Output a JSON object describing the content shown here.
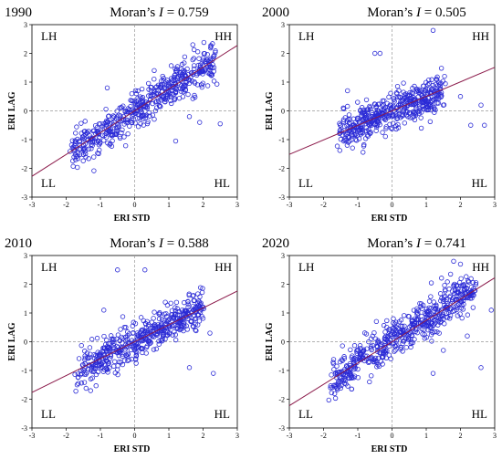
{
  "chart_data": [
    {
      "type": "scatter",
      "year": "1990",
      "moran_prefix": "Moran’s ",
      "moran_symbol": "I",
      "moran_value": " = 0.759",
      "slope": 0.759,
      "xlabel": "ERI    STD",
      "ylabel": "ERI  LAG",
      "xlim": [
        -3,
        3
      ],
      "ylim": [
        -3,
        3
      ],
      "ticks": [
        "-3",
        "-2",
        "-1",
        "0",
        "1",
        "2",
        "3"
      ],
      "quadrants": {
        "LH": "LH",
        "HH": "HH",
        "LL": "LL",
        "HL": "HL"
      },
      "cluster": {
        "x_range": [
          -1.8,
          2.4
        ],
        "spread": 0.35,
        "n": 520
      },
      "outliers": [
        [
          2.5,
          -0.45
        ],
        [
          1.9,
          -0.4
        ],
        [
          1.2,
          -1.05
        ],
        [
          1.6,
          -0.2
        ],
        [
          1.7,
          2.3
        ],
        [
          -0.8,
          0.8
        ]
      ]
    },
    {
      "type": "scatter",
      "year": "2000",
      "moran_prefix": "Moran’s ",
      "moran_symbol": "I",
      "moran_value": " = 0.505",
      "slope": 0.505,
      "xlabel": "ERI    STD",
      "ylabel": "ERI  LAG",
      "xlim": [
        -3,
        3
      ],
      "ylim": [
        -3,
        3
      ],
      "ticks": [
        "-3",
        "-2",
        "-1",
        "0",
        "1",
        "2",
        "3"
      ],
      "quadrants": {
        "LH": "LH",
        "HH": "HH",
        "LL": "LL",
        "HL": "HL"
      },
      "cluster": {
        "x_range": [
          -1.6,
          1.5
        ],
        "spread": 0.32,
        "n": 480
      },
      "outliers": [
        [
          1.2,
          2.8
        ],
        [
          -0.35,
          2.0
        ],
        [
          -0.5,
          2.0
        ],
        [
          -1.3,
          0.7
        ],
        [
          2.3,
          -0.5
        ],
        [
          2.7,
          -0.5
        ],
        [
          2.0,
          0.5
        ],
        [
          1.5,
          0.2
        ],
        [
          0.6,
          0.6
        ],
        [
          2.6,
          0.2
        ]
      ]
    },
    {
      "type": "scatter",
      "year": "2010",
      "moran_prefix": "Moran’s ",
      "moran_symbol": "I",
      "moran_value": " = 0.588",
      "slope": 0.588,
      "xlabel": "ERI    STD",
      "ylabel": "ERI  LAG",
      "xlim": [
        -3,
        3
      ],
      "ylim": [
        -3,
        3
      ],
      "ticks": [
        "-3",
        "-2",
        "-1",
        "0",
        "1",
        "2",
        "3"
      ],
      "quadrants": {
        "LH": "LH",
        "HH": "HH",
        "LL": "LL",
        "HL": "HL"
      },
      "cluster": {
        "x_range": [
          -1.7,
          2.0
        ],
        "spread": 0.33,
        "n": 500
      },
      "outliers": [
        [
          -0.5,
          2.5
        ],
        [
          0.3,
          2.5
        ],
        [
          2.3,
          -1.1
        ],
        [
          1.6,
          -0.9
        ],
        [
          2.2,
          0.3
        ],
        [
          -0.9,
          1.1
        ],
        [
          1.7,
          1.6
        ]
      ]
    },
    {
      "type": "scatter",
      "year": "2020",
      "moran_prefix": "Moran’s ",
      "moran_symbol": "I",
      "moran_value": " = 0.741",
      "slope": 0.741,
      "xlabel": "ERI    STD",
      "ylabel": "ERI  LAG",
      "xlim": [
        -3,
        3
      ],
      "ylim": [
        -3,
        3
      ],
      "ticks": [
        "-3",
        "-2",
        "-1",
        "0",
        "1",
        "2",
        "3"
      ],
      "quadrants": {
        "LH": "LH",
        "HH": "HH",
        "LL": "LL",
        "HL": "HL"
      },
      "cluster": {
        "x_range": [
          -1.8,
          2.4
        ],
        "spread": 0.35,
        "n": 560
      },
      "outliers": [
        [
          1.8,
          2.8
        ],
        [
          2.0,
          2.7
        ],
        [
          2.6,
          -0.9
        ],
        [
          1.2,
          -1.1
        ],
        [
          2.9,
          1.1
        ],
        [
          2.2,
          0.2
        ],
        [
          1.5,
          -0.3
        ]
      ]
    }
  ]
}
